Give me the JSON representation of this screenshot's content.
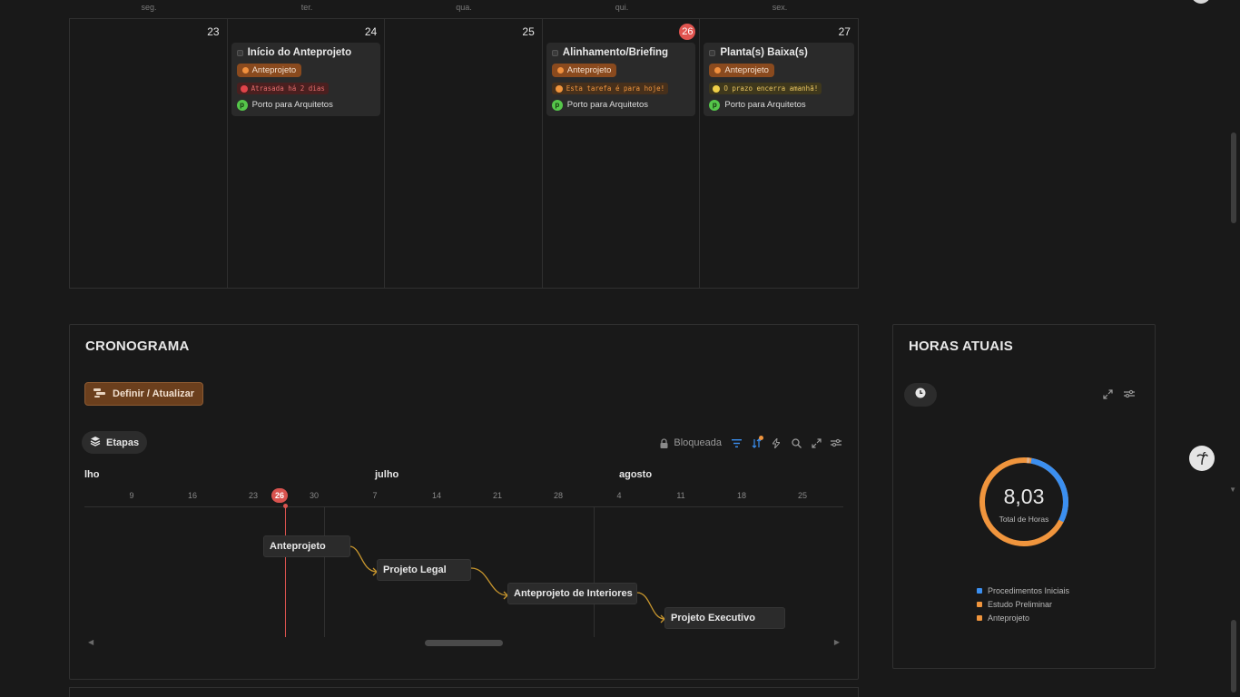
{
  "weekdays": [
    "seg.",
    "ter.",
    "qua.",
    "qui.",
    "sex."
  ],
  "calendar": {
    "days": [
      {
        "num": "23",
        "today": false
      },
      {
        "num": "24",
        "today": false
      },
      {
        "num": "25",
        "today": false
      },
      {
        "num": "26",
        "today": true
      },
      {
        "num": "27",
        "today": false
      }
    ],
    "cards": [
      {
        "title": "Início do Anteprojeto",
        "tag": "Anteprojeto",
        "warning": "Atrasada há 2 dias",
        "warning_level": "red",
        "assignee": "Porto para Arquitetos",
        "assignee_icon": "p"
      },
      {
        "title": "Alinhamento/Briefing",
        "tag": "Anteprojeto",
        "warning": "Esta tarefa é para hoje!",
        "warning_level": "orange",
        "assignee": "Porto para Arquitetos",
        "assignee_icon": "p"
      },
      {
        "title": "Planta(s) Baixa(s)",
        "tag": "Anteprojeto",
        "warning": "O prazo encerra amanhã!",
        "warning_level": "yellow",
        "assignee": "Porto para Arquitetos",
        "assignee_icon": "p"
      }
    ]
  },
  "cronograma": {
    "title": "CRONOGRAMA",
    "define_button": "Definir / Atualizar",
    "etapas_button": "Etapas",
    "locked_label": "Bloqueada",
    "months": [
      "lho",
      "julho",
      "agosto"
    ],
    "ticks": [
      "9",
      "16",
      "23",
      "26",
      "30",
      "7",
      "14",
      "21",
      "28",
      "4",
      "11",
      "18",
      "25"
    ],
    "today_tick": "26",
    "tasks": [
      "Anteprojeto",
      "Projeto Legal",
      "Anteprojeto de Interiores",
      "Projeto Executivo"
    ]
  },
  "horas": {
    "title": "HORAS ATUAIS",
    "total_value": "8,03",
    "total_label": "Total de Horas",
    "legend": [
      {
        "label": "Procedimentos Iniciais",
        "color": "#3b8ff0"
      },
      {
        "label": "Estudo Preliminar",
        "color": "#f0953d"
      },
      {
        "label": "Anteprojeto",
        "color": "#f0953d"
      }
    ]
  },
  "colors": {
    "accent_orange": "#f0953d",
    "accent_blue": "#3b8ff0",
    "today_red": "#d9534f"
  }
}
